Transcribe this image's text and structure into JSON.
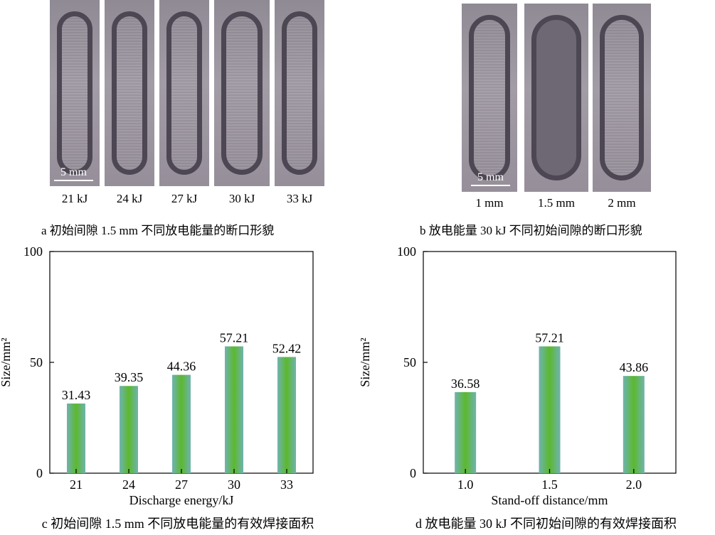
{
  "panel_a": {
    "labels": [
      "21 kJ",
      "24 kJ",
      "27 kJ",
      "30 kJ",
      "33 kJ"
    ],
    "scale_bar": "5 mm",
    "caption": "a 初始间隙 1.5 mm 不同放电能量的断口形貌"
  },
  "panel_b": {
    "labels": [
      "1 mm",
      "1.5 mm",
      "2 mm"
    ],
    "scale_bar": "5 mm",
    "caption": "b 放电能量 30 kJ 不同初始间隙的断口形貌"
  },
  "colors": {
    "bar_center": "#5cb82e",
    "bar_edge": "#6fb3b0",
    "axis": "#000000"
  },
  "chart_data": [
    {
      "type": "bar",
      "categories": [
        "21",
        "24",
        "27",
        "30",
        "33"
      ],
      "values": [
        31.43,
        39.35,
        44.36,
        57.21,
        52.42
      ],
      "value_labels": [
        "31.43",
        "39.35",
        "44.36",
        "57.21",
        "52.42"
      ],
      "xlabel": "Discharge energy/kJ",
      "ylabel": "Size/mm²",
      "ylim": [
        0,
        100
      ],
      "yticks": [
        "0",
        "50",
        "100"
      ],
      "caption": "c 初始间隙 1.5 mm 不同放电能量的有效焊接面积"
    },
    {
      "type": "bar",
      "categories": [
        "1.0",
        "1.5",
        "2.0"
      ],
      "values": [
        36.58,
        57.21,
        43.86
      ],
      "value_labels": [
        "36.58",
        "57.21",
        "43.86"
      ],
      "xlabel": "Stand-off distance/mm",
      "ylabel": "Size/mm²",
      "ylim": [
        0,
        100
      ],
      "yticks": [
        "0",
        "50",
        "100"
      ],
      "caption": "d 放电能量 30 kJ 不同初始间隙的有效焊接面积"
    }
  ]
}
